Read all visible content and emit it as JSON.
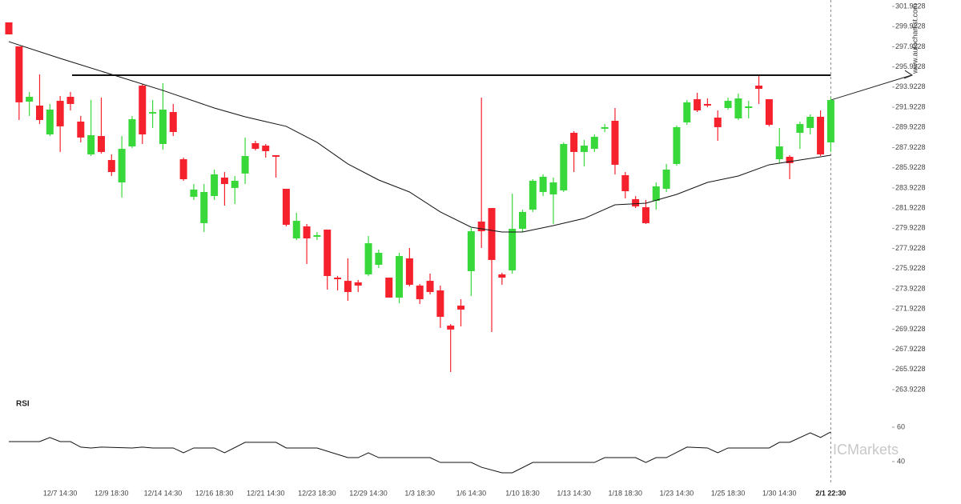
{
  "chart_data": {
    "type": "candlestick",
    "categories": [
      null,
      null,
      null,
      null,
      null,
      "12/7 14:30",
      null,
      null,
      null,
      null,
      "12/9 18:30",
      null,
      null,
      null,
      null,
      "12/14 14:30",
      null,
      null,
      null,
      null,
      "12/16 18:30",
      null,
      null,
      null,
      null,
      "12/21 14:30",
      null,
      null,
      null,
      null,
      "12/23 18:30",
      null,
      null,
      null,
      null,
      "12/29 14:30",
      null,
      null,
      null,
      null,
      "1/3 18:30",
      null,
      null,
      null,
      null,
      "1/6 14:30",
      null,
      null,
      null,
      null,
      "1/10 18:30",
      null,
      null,
      null,
      null,
      "1/13 14:30",
      null,
      null,
      null,
      null,
      "1/18 18:30",
      null,
      null,
      null,
      null,
      "1/23 14:30",
      null,
      null,
      null,
      null,
      "1/25 18:30",
      null,
      null,
      null,
      null,
      "1/30 14:30",
      null,
      null,
      null,
      null,
      "2/1 22:30"
    ],
    "open": [
      300.34,
      297.96,
      292.48,
      292.09,
      289.23,
      292.56,
      292.96,
      290.5,
      287.25,
      289.07,
      286.69,
      284.47,
      288.04,
      294.07,
      291.3,
      288.28,
      291.45,
      286.77,
      283.04,
      280.43,
      283.12,
      284.95,
      283.92,
      285.35,
      288.36,
      288.12,
      287.17,
      283.84,
      278.92,
      280.11,
      279.08,
      279.79,
      275.03,
      274.71,
      274.56,
      275.35,
      276.3,
      275.03,
      273.05,
      276.94,
      274.24,
      274.71,
      273.76,
      270.27,
      272.25,
      275.67,
      280.59,
      281.93,
      275.35,
      275.75,
      279.87,
      281.77,
      283.52,
      283.28,
      283.68,
      289.39,
      287.49,
      287.8,
      289.79,
      290.58,
      285.19,
      282.81,
      282.01,
      282.65,
      283.84,
      286.3,
      290.42,
      292.72,
      292.25,
      290.9,
      291.85,
      290.82,
      291.85,
      294.07,
      292.72,
      286.77,
      287.01,
      289.39,
      289.87,
      290.98,
      288.44
    ],
    "high": [
      300.34,
      297.96,
      293.44,
      295.18,
      292.25,
      293.04,
      293.44,
      291.06,
      292.64,
      292.88,
      287.25,
      289.07,
      291.06,
      294.23,
      292.64,
      294.31,
      292.25,
      286.93,
      284.31,
      284.31,
      285.74,
      285.5,
      285.11,
      288.92,
      288.6,
      288.28,
      287.17,
      283.84,
      281.46,
      280.35,
      279.55,
      279.79,
      275.19,
      276.94,
      274.8,
      279.16,
      277.81,
      275.03,
      277.49,
      277.97,
      274.4,
      275.43,
      274.24,
      270.43,
      272.89,
      279.95,
      292.88,
      281.93,
      275.51,
      283.36,
      281.77,
      284.79,
      285.27,
      284.95,
      288.44,
      289.55,
      288.68,
      289.23,
      290.26,
      291.85,
      285.5,
      283.12,
      282.73,
      284.47,
      286.3,
      290.11,
      292.64,
      293.36,
      292.8,
      291.61,
      292.88,
      293.28,
      292.56,
      295.02,
      292.72,
      289.87,
      287.17,
      290.5,
      291.22,
      291.61,
      292.88
    ],
    "low": [
      299.15,
      290.66,
      291.06,
      290.26,
      289.07,
      287.49,
      291.61,
      288.44,
      287.09,
      287.33,
      285.11,
      282.97,
      287.88,
      288.28,
      289.87,
      287.72,
      289.07,
      284.63,
      282.73,
      279.55,
      282.73,
      282.17,
      282.33,
      284.31,
      287.65,
      286.93,
      284.95,
      280.11,
      278.76,
      276.38,
      278.76,
      273.84,
      273.76,
      272.73,
      273.6,
      275.19,
      275.98,
      273.05,
      272.49,
      274.16,
      272.41,
      273.37,
      270.04,
      265.67,
      270.19,
      273.2,
      277.97,
      269.64,
      274.32,
      275.43,
      279.55,
      281.54,
      283.12,
      280.35,
      283.52,
      285.5,
      286.06,
      287.49,
      289.47,
      285.27,
      282.89,
      281.93,
      280.35,
      281.77,
      283.52,
      286.14,
      290.18,
      291.45,
      291.93,
      288.6,
      291.69,
      290.66,
      290.82,
      292.25,
      290.03,
      286.38,
      284.79,
      287.8,
      289.23,
      287.09,
      287.49
    ],
    "close": [
      299.15,
      292.41,
      292.96,
      290.66,
      291.69,
      290.03,
      292.25,
      288.92,
      289.15,
      287.49,
      285.5,
      287.8,
      290.74,
      289.23,
      291.45,
      291.69,
      289.47,
      284.79,
      283.76,
      283.52,
      285.27,
      284.31,
      284.63,
      287.09,
      287.8,
      287.57,
      287.01,
      280.27,
      280.66,
      278.92,
      279.24,
      275.19,
      274.87,
      273.6,
      274.24,
      278.44,
      277.49,
      273.05,
      277.17,
      274.32,
      272.89,
      273.6,
      271.14,
      269.88,
      271.86,
      279.63,
      279.63,
      276.78,
      275.03,
      279.87,
      281.54,
      284.63,
      285.03,
      284.47,
      288.28,
      287.49,
      288.12,
      288.99,
      289.95,
      286.22,
      283.6,
      282.09,
      280.43,
      284.08,
      285.74,
      289.95,
      292.41,
      291.61,
      292.09,
      289.95,
      292.56,
      292.8,
      292.01,
      293.75,
      290.18,
      288.04,
      286.38,
      290.26,
      290.98,
      287.25,
      292.64
    ],
    "up_color": "#38d83a",
    "down_color": "#f5222d",
    "ylim": [
      263.29,
      302.56
    ],
    "yticks": [
      301.9228,
      299.9228,
      297.9228,
      295.9228,
      293.9228,
      291.9228,
      289.9228,
      287.9228,
      285.9228,
      283.9228,
      281.9228,
      279.9228,
      277.9228,
      275.9228,
      273.9228,
      271.9228,
      269.9228,
      267.9228,
      265.9228,
      263.9228
    ],
    "moving_average": {
      "color": "#111111",
      "x": [
        0,
        5,
        10,
        15,
        20,
        23,
        25,
        27,
        30,
        33,
        36,
        39,
        42,
        45,
        48,
        50,
        53,
        56,
        59,
        62,
        65,
        68,
        71,
        74,
        77,
        80
      ],
      "values": [
        298.43,
        296.77,
        295.18,
        293.59,
        291.85,
        290.98,
        290.5,
        290.03,
        288.44,
        286.3,
        284.71,
        283.52,
        281.54,
        280.03,
        279.55,
        279.55,
        280.19,
        280.9,
        282.25,
        282.41,
        283.28,
        284.47,
        285.11,
        286.22,
        286.69,
        287.17
      ]
    },
    "resistance": 295.1,
    "rsi": {
      "label": "RSI",
      "color": "#111111",
      "x": [
        0,
        3,
        4,
        5,
        6,
        7,
        8,
        9,
        12,
        13,
        14,
        16,
        17,
        18,
        20,
        21,
        23,
        26,
        27,
        30,
        33,
        34,
        35,
        36,
        41,
        42,
        45,
        46,
        48,
        49,
        51,
        57,
        58,
        61,
        62,
        63,
        64,
        66,
        68,
        69,
        70,
        74,
        75,
        76,
        78,
        79,
        80
      ],
      "values": [
        51.6,
        51.6,
        54.0,
        51.6,
        51.6,
        48.4,
        47.9,
        48.4,
        47.9,
        48.4,
        47.9,
        47.9,
        45.1,
        47.9,
        47.9,
        45.1,
        51.2,
        51.2,
        47.9,
        47.9,
        42.3,
        42.3,
        45.1,
        42.3,
        42.3,
        39.5,
        39.5,
        36.7,
        33.5,
        33.5,
        39.5,
        39.5,
        42.3,
        42.3,
        39.5,
        42.3,
        42.3,
        48.4,
        47.9,
        45.1,
        47.9,
        47.9,
        51.2,
        51.2,
        56.7,
        54.0,
        57.2
      ],
      "ylim": [
        29.3,
        78.1
      ],
      "yticks": [
        40,
        60
      ]
    },
    "source": "www.autochartist.com",
    "brand": "ICMarkets"
  }
}
